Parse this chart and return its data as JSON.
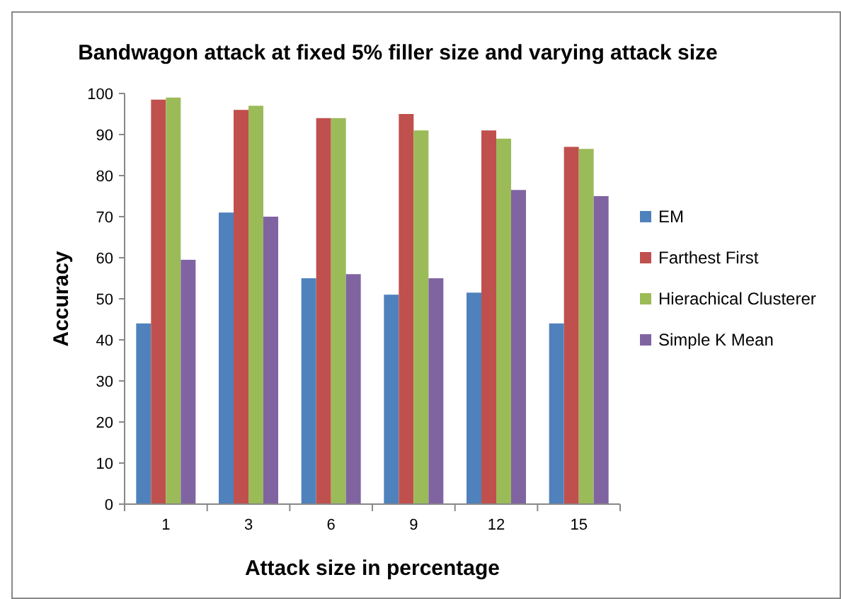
{
  "chart_data": {
    "type": "bar",
    "title": "Bandwagon attack at fixed 5% filler size and varying attack size",
    "xlabel": "Attack size in percentage",
    "ylabel": "Accuracy",
    "categories": [
      "1",
      "3",
      "6",
      "9",
      "12",
      "15"
    ],
    "series": [
      {
        "name": "EM",
        "color": "#4f81bd",
        "values": [
          44,
          71,
          55,
          51,
          51.5,
          44
        ]
      },
      {
        "name": "Farthest First",
        "color": "#c0504d",
        "values": [
          98.5,
          96,
          94,
          95,
          91,
          87
        ]
      },
      {
        "name": "Hierachical Clusterer",
        "color": "#9bbb59",
        "values": [
          99,
          97,
          94,
          91,
          89,
          86.5
        ]
      },
      {
        "name": "Simple K Mean",
        "color": "#8064a2",
        "values": [
          59.5,
          70,
          56,
          55,
          76.5,
          75
        ]
      }
    ],
    "ylim": [
      0,
      100
    ],
    "yticks": [
      0,
      10,
      20,
      30,
      40,
      50,
      60,
      70,
      80,
      90,
      100
    ],
    "grid": false,
    "legend": "right"
  }
}
